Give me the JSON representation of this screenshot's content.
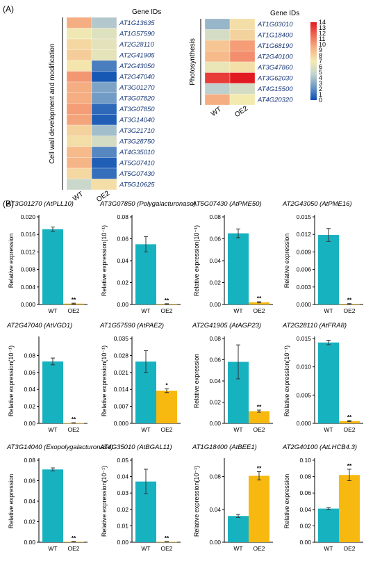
{
  "figure": {
    "panel_a_label": "(A)",
    "panel_b_label": "(B)"
  },
  "colors": {
    "wt_bar": "#17b2c0",
    "oe2_bar": "#f7b90f",
    "axis": "#000000"
  },
  "heatmap_scale": {
    "min": 0,
    "max": 14,
    "ticks": [
      "14",
      "13",
      "12",
      "11",
      "10",
      "9",
      "8",
      "7",
      "6",
      "5",
      "4",
      "3",
      "2",
      "1",
      "0"
    ],
    "gradient": [
      "#0c4fb3",
      "#6c98c4",
      "#c3d4cf",
      "#f3eab0",
      "#f6b285",
      "#ee6a55",
      "#e11a22"
    ]
  },
  "chart_data": [
    {
      "type": "heatmap",
      "group_label": "Cell wall development and modification",
      "header": "Gene IDs",
      "columns": [
        "WT",
        "OE2"
      ],
      "rows": [
        {
          "gene": "AT1G13635",
          "values": [
            9.5,
            4.2
          ]
        },
        {
          "gene": "AT1G57590",
          "values": [
            6.8,
            6.0
          ]
        },
        {
          "gene": "AT2G28110",
          "values": [
            7.8,
            6.2
          ]
        },
        {
          "gene": "AT2G41905",
          "values": [
            8.2,
            6.3
          ]
        },
        {
          "gene": "AT2G43050",
          "values": [
            7.2,
            1.5
          ]
        },
        {
          "gene": "AT2G47040",
          "values": [
            10.2,
            0.3
          ]
        },
        {
          "gene": "AT3G01270",
          "values": [
            9.5,
            2.8
          ]
        },
        {
          "gene": "AT3G07820",
          "values": [
            9.5,
            2.5
          ]
        },
        {
          "gene": "AT3G07850",
          "values": [
            10.0,
            0.8
          ]
        },
        {
          "gene": "AT3G14040",
          "values": [
            9.8,
            0.5
          ]
        },
        {
          "gene": "AT3G21710",
          "values": [
            8.0,
            3.8
          ]
        },
        {
          "gene": "AT3G28750",
          "values": [
            7.5,
            5.5
          ]
        },
        {
          "gene": "AT4G35010",
          "values": [
            9.0,
            1.8
          ]
        },
        {
          "gene": "AT5G07410",
          "values": [
            9.2,
            0.5
          ]
        },
        {
          "gene": "AT5G07430",
          "values": [
            7.8,
            1.0
          ]
        },
        {
          "gene": "AT5G10625",
          "values": [
            5.0,
            7.5
          ]
        }
      ]
    },
    {
      "type": "heatmap",
      "group_label": "Photosynthesis",
      "header": "Gene IDs",
      "columns": [
        "WT",
        "OE2"
      ],
      "rows": [
        {
          "gene": "AT1G03010",
          "values": [
            3.5,
            7.5
          ]
        },
        {
          "gene": "AT1G18400",
          "values": [
            5.5,
            8.0
          ]
        },
        {
          "gene": "AT1G68190",
          "values": [
            8.5,
            10.0
          ]
        },
        {
          "gene": "AT2G40100",
          "values": [
            9.0,
            10.5
          ]
        },
        {
          "gene": "AT3G47860",
          "values": [
            6.5,
            7.5
          ]
        },
        {
          "gene": "AT3G62030",
          "values": [
            13.0,
            14.0
          ]
        },
        {
          "gene": "AT4G15500",
          "values": [
            4.5,
            5.5
          ]
        },
        {
          "gene": "AT4G20320",
          "values": [
            9.5,
            7.0
          ]
        }
      ]
    },
    {
      "type": "bar",
      "title": "AT3G01270 (AtPLL10)",
      "ylabel": "Relative expression",
      "categories": [
        "WT",
        "OE2"
      ],
      "values": [
        0.0172,
        0.0002
      ],
      "errors": [
        0.0005,
        0.0001
      ],
      "ylim": [
        0,
        0.02
      ],
      "yticks": [
        "0.000",
        "0.004",
        "0.008",
        "0.012",
        "0.016",
        "0.020"
      ],
      "sig": [
        "",
        "**"
      ]
    },
    {
      "type": "bar",
      "title": "AT3G07850 (Polygalacturonase)",
      "ylabel": "Relative expression(10⁻¹)",
      "categories": [
        "WT",
        "OE2"
      ],
      "values": [
        0.055,
        0.0005
      ],
      "errors": [
        0.007,
        0.0002
      ],
      "ylim": [
        0,
        0.08
      ],
      "yticks": [
        "0.00",
        "0.02",
        "0.04",
        "0.06",
        "0.08"
      ],
      "sig": [
        "",
        "**"
      ]
    },
    {
      "type": "bar",
      "title": "AT5G07430 (AtPME50)",
      "ylabel": "Relative expression(10⁻¹)",
      "categories": [
        "WT",
        "OE2"
      ],
      "values": [
        0.065,
        0.002
      ],
      "errors": [
        0.004,
        0.0005
      ],
      "ylim": [
        0,
        0.08
      ],
      "yticks": [
        "0.00",
        "0.02",
        "0.04",
        "0.06",
        "0.08"
      ],
      "sig": [
        "",
        "**"
      ]
    },
    {
      "type": "bar",
      "title": "AT2G43050 (AtPME16)",
      "ylabel": "Relative expression",
      "categories": [
        "WT",
        "OE2"
      ],
      "values": [
        0.0119,
        0.0001
      ],
      "errors": [
        0.0011,
        5e-05
      ],
      "ylim": [
        0,
        0.015
      ],
      "yticks": [
        "0.000",
        "0.003",
        "0.006",
        "0.009",
        "0.012",
        "0.015"
      ],
      "sig": [
        "",
        "**"
      ]
    },
    {
      "type": "bar",
      "title": "AT2G47040 (AtVGD1)",
      "ylabel": "Relative expression(10⁻¹)",
      "categories": [
        "WT",
        "OE2"
      ],
      "values": [
        0.073,
        0.0005
      ],
      "errors": [
        0.004,
        0.0002
      ],
      "ylim": [
        0,
        0.1
      ],
      "yticks": [
        "0.00",
        "0.02",
        "0.04",
        "0.06",
        "0.08"
      ],
      "sig": [
        "",
        "**"
      ]
    },
    {
      "type": "bar",
      "title": "AT1G57590 (AtPAE2)",
      "ylabel": "Relative expression(10⁻¹)",
      "categories": [
        "WT",
        "OE2"
      ],
      "values": [
        0.0255,
        0.0135
      ],
      "errors": [
        0.0045,
        0.0008
      ],
      "ylim": [
        0,
        0.035
      ],
      "yticks": [
        "0.000",
        "0.007",
        "0.014",
        "0.021",
        "0.028",
        "0.035"
      ],
      "sig": [
        "",
        "*"
      ]
    },
    {
      "type": "bar",
      "title": "AT2G41905 (AtAGP23)",
      "ylabel": "Relative expression",
      "categories": [
        "WT",
        "OE2"
      ],
      "values": [
        0.058,
        0.0115
      ],
      "errors": [
        0.016,
        0.001
      ],
      "ylim": [
        0,
        0.08
      ],
      "yticks": [
        "0.00",
        "0.02",
        "0.04",
        "0.06",
        "0.08"
      ],
      "sig": [
        "",
        "**"
      ]
    },
    {
      "type": "bar",
      "title": "AT2G28110 (AtFRA8)",
      "ylabel": "Relative expression(10⁻¹)",
      "categories": [
        "WT",
        "OE2"
      ],
      "values": [
        0.0143,
        0.0004
      ],
      "errors": [
        0.0004,
        0.0001
      ],
      "ylim": [
        0,
        0.015
      ],
      "yticks": [
        "0.000",
        "0.005",
        "0.010",
        "0.015"
      ],
      "sig": [
        "",
        "**"
      ]
    },
    {
      "type": "bar",
      "title": "AT3G14040 (Exopolygalacturonase)",
      "ylabel": "Relative expression",
      "categories": [
        "WT",
        "OE2"
      ],
      "values": [
        0.071,
        0.0005
      ],
      "errors": [
        0.0015,
        0.0002
      ],
      "ylim": [
        0,
        0.08
      ],
      "yticks": [
        "0.00",
        "0.02",
        "0.04",
        "0.06",
        "0.08"
      ],
      "sig": [
        "",
        "**"
      ]
    },
    {
      "type": "bar",
      "title": "AT4G35010 (AtBGAL11)",
      "ylabel": "Relative expression(10⁻¹)",
      "categories": [
        "WT",
        "OE2"
      ],
      "values": [
        0.037,
        0.0003
      ],
      "errors": [
        0.0075,
        0.0001
      ],
      "ylim": [
        0,
        0.05
      ],
      "yticks": [
        "0.00",
        "0.01",
        "0.02",
        "0.03",
        "0.04",
        "0.05"
      ],
      "sig": [
        "",
        "**"
      ]
    },
    {
      "type": "bar",
      "title": "AT1G18400 (AtBEE1)",
      "ylabel": "Relative expression(10⁻¹)",
      "categories": [
        "WT",
        "OE2"
      ],
      "values": [
        0.032,
        0.081
      ],
      "errors": [
        0.0018,
        0.005
      ],
      "ylim": [
        0,
        0.1
      ],
      "yticks": [
        "0.00",
        "0.04",
        "0.08"
      ],
      "sig": [
        "",
        "**"
      ]
    },
    {
      "type": "bar",
      "title": "AT2G40100 (AtLHCB4.3)",
      "ylabel": "Relative expression",
      "categories": [
        "WT",
        "OE2"
      ],
      "values": [
        0.041,
        0.082
      ],
      "errors": [
        0.0012,
        0.007
      ],
      "ylim": [
        0,
        0.1
      ],
      "yticks": [
        "0.00",
        "0.02",
        "0.04",
        "0.06",
        "0.08",
        "0.10"
      ],
      "sig": [
        "",
        "**"
      ]
    }
  ]
}
